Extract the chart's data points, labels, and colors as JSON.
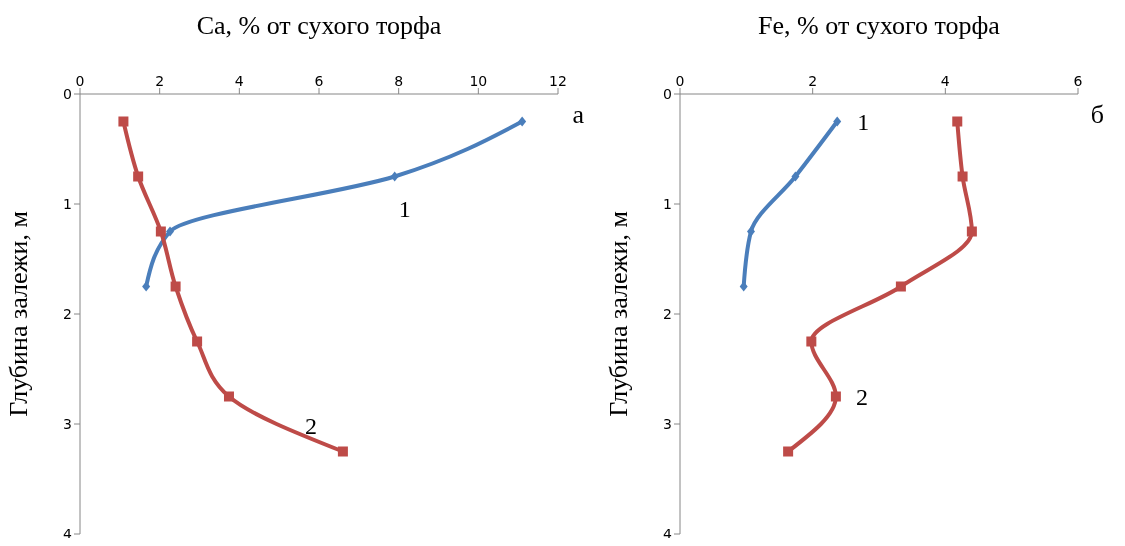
{
  "chart_data": [
    {
      "type": "line",
      "orientation": "horizontal",
      "xlabel": "Ca, % от сухого торфа",
      "ylabel": "Глубина залежи, м",
      "xlim": [
        0,
        12
      ],
      "xticks": [
        0,
        2,
        4,
        6,
        8,
        10,
        12
      ],
      "ylim": [
        4,
        0
      ],
      "yticks": [
        0,
        1,
        2,
        3,
        4
      ],
      "grid": false,
      "legend": false,
      "line_style": "solid",
      "series": [
        {
          "name": "1",
          "color": "#4a7ebb",
          "marker": "diamond",
          "x": [
            0.25,
            0.75,
            1.25,
            1.75
          ],
          "values": [
            11.1,
            7.9,
            2.26,
            1.66
          ]
        },
        {
          "name": "2",
          "color": "#be4b48",
          "marker": "square",
          "x": [
            0.25,
            0.75,
            1.25,
            1.75,
            2.25,
            2.75,
            3.25
          ],
          "values": [
            1.09,
            1.46,
            2.03,
            2.4,
            2.94,
            3.74,
            6.6
          ]
        }
      ],
      "annotations": [
        "а"
      ]
    },
    {
      "type": "line",
      "orientation": "horizontal",
      "xlabel": "Fe, % от сухого торфа",
      "ylabel": "Глубина залежи, м",
      "xlim": [
        0,
        6
      ],
      "xticks": [
        0,
        2,
        4,
        6
      ],
      "ylim": [
        4,
        0
      ],
      "yticks": [
        0,
        1,
        2,
        3,
        4
      ],
      "grid": false,
      "legend": false,
      "line_style": "solid",
      "series": [
        {
          "name": "1",
          "color": "#4a7ebb",
          "marker": "diamond",
          "x": [
            0.25,
            0.75,
            1.25,
            1.75
          ],
          "values": [
            2.37,
            1.74,
            1.07,
            0.96
          ]
        },
        {
          "name": "2",
          "color": "#be4b48",
          "marker": "square",
          "x": [
            0.25,
            0.75,
            1.25,
            1.75,
            2.25,
            2.75,
            3.25
          ],
          "values": [
            4.18,
            4.26,
            4.4,
            3.33,
            1.98,
            2.35,
            1.63
          ]
        }
      ],
      "annotations": [
        "б"
      ]
    }
  ]
}
